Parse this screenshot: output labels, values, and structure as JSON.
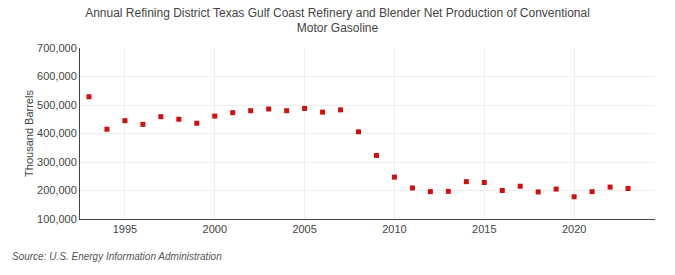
{
  "chart_data": {
    "type": "scatter",
    "title": "Annual Refining District Texas Gulf Coast Refinery and Blender Net Production of Conventional\nMotor Gasoline",
    "ylabel": "Thousand Barrels",
    "source": "Source: U.S. Energy Information Administration",
    "x": [
      1993,
      1994,
      1995,
      1996,
      1997,
      1998,
      1999,
      2000,
      2001,
      2002,
      2003,
      2004,
      2005,
      2006,
      2007,
      2008,
      2009,
      2010,
      2011,
      2012,
      2013,
      2014,
      2015,
      2016,
      2017,
      2018,
      2019,
      2020,
      2021,
      2022,
      2023
    ],
    "values": [
      529000,
      415000,
      445000,
      432000,
      459000,
      450000,
      436000,
      461000,
      473000,
      480000,
      486000,
      480000,
      488000,
      475000,
      483000,
      406000,
      323000,
      247000,
      209000,
      196000,
      197000,
      231000,
      228000,
      200000,
      215000,
      195000,
      205000,
      178000,
      196000,
      212000,
      207000
    ],
    "color": "#cc1111",
    "marker": "square",
    "xlim": [
      1992.5,
      2024.5
    ],
    "xticks": [
      1995,
      2000,
      2005,
      2010,
      2015,
      2020
    ],
    "ylim": [
      100000,
      700000
    ],
    "yticks": [
      {
        "value": 100000,
        "label": "100,000"
      },
      {
        "value": 200000,
        "label": "200,000"
      },
      {
        "value": 300000,
        "label": "300,000"
      },
      {
        "value": 400000,
        "label": "400,000"
      },
      {
        "value": 500000,
        "label": "500,000"
      },
      {
        "value": 600000,
        "label": "600,000"
      },
      {
        "value": 700000,
        "label": "700,000"
      }
    ],
    "grid": true
  }
}
